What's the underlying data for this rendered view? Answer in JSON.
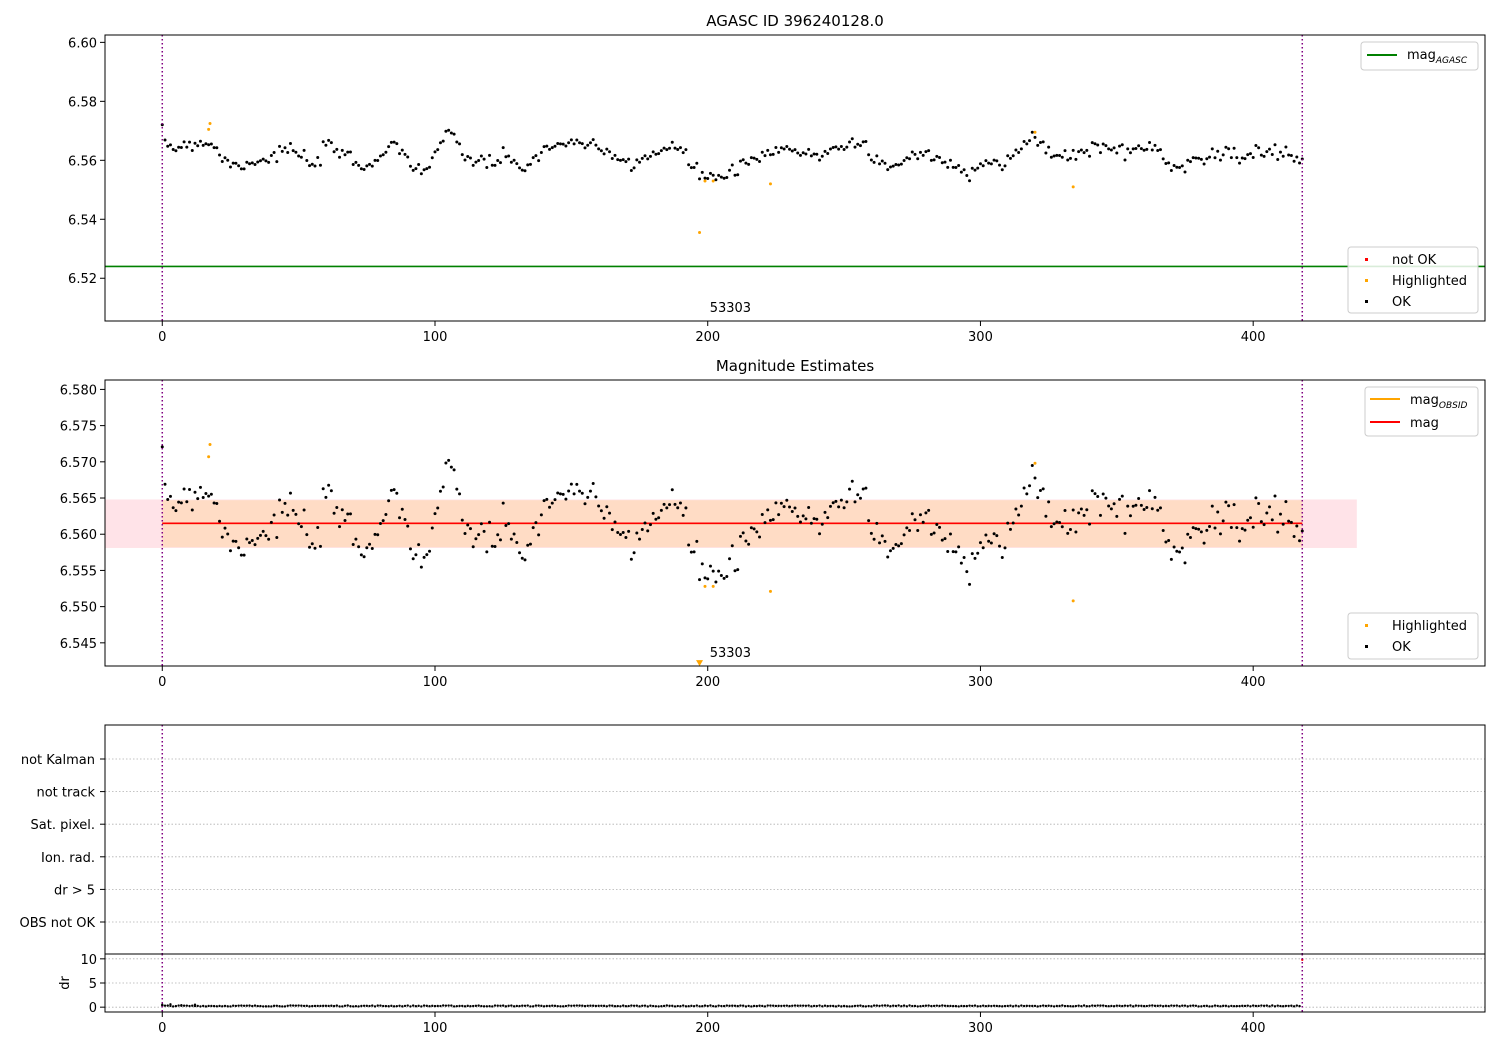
{
  "figure": {
    "title": "AGASC ID 396240128.0"
  },
  "colors": {
    "ok": "#000000",
    "highlighted": "#ffa500",
    "not_ok": "#ff0000",
    "mag_agasc_line": "#008000",
    "mag_obsid_line": "#ffa500",
    "mag_line": "#ff0000",
    "band_outer": "#ffc0cb",
    "band_inner": "#ffdab9",
    "obs_boundary": "#800080",
    "grid": "#b0b0b0"
  },
  "chart_data": [
    {
      "id": "agasc_panel",
      "type": "scatter",
      "title": "AGASC ID 396240128.0",
      "xlim": [
        -21,
        485
      ],
      "ylim": [
        6.5055,
        6.6025
      ],
      "xticks": [
        0,
        100,
        200,
        300,
        400
      ],
      "yticks": [
        6.52,
        6.54,
        6.56,
        6.58,
        6.6
      ],
      "ytick_labels": [
        "6.52",
        "6.54",
        "6.56",
        "6.58",
        "6.60"
      ],
      "obs_boundaries": [
        0,
        418
      ],
      "obs_label": "53303",
      "mag_agasc": 6.524,
      "legend_lines": [
        {
          "label": "mag",
          "sub": "AGASC",
          "color": "#008000"
        }
      ],
      "legend_points": [
        {
          "label": "not OK",
          "color": "#ff0000"
        },
        {
          "label": "Highlighted",
          "color": "#ffa500"
        },
        {
          "label": "OK",
          "color": "#000000"
        }
      ],
      "highlighted": [
        [
          17,
          6.5705
        ],
        [
          17.5,
          6.5725
        ],
        [
          197,
          6.5355
        ],
        [
          199,
          6.553
        ],
        [
          202,
          6.553
        ],
        [
          223,
          6.552
        ],
        [
          320,
          6.5695
        ],
        [
          334,
          6.551
        ]
      ]
    },
    {
      "id": "mag_panel",
      "type": "scatter",
      "title": "Magnitude Estimates",
      "xlim": [
        -21,
        485
      ],
      "ylim": [
        6.5418,
        6.5813
      ],
      "xticks": [
        0,
        100,
        200,
        300,
        400
      ],
      "yticks": [
        6.545,
        6.55,
        6.555,
        6.56,
        6.565,
        6.57,
        6.575,
        6.58
      ],
      "ytick_labels": [
        "6.545",
        "6.550",
        "6.555",
        "6.560",
        "6.565",
        "6.570",
        "6.575",
        "6.580"
      ],
      "obs_boundaries": [
        0,
        418
      ],
      "obs_label": "53303",
      "mag": 6.5615,
      "mag_obsid": 6.5615,
      "band_outer": [
        6.5581,
        6.5648
      ],
      "band_inner": [
        6.5582,
        6.5647
      ],
      "band_x": [
        -21,
        438
      ],
      "legend_lines": [
        {
          "label": "mag",
          "sub": "OBSID",
          "color": "#ffa500"
        },
        {
          "label": "mag",
          "sub": "",
          "color": "#ff0000"
        }
      ],
      "legend_points": [
        {
          "label": "Highlighted",
          "color": "#ffa500"
        },
        {
          "label": "OK",
          "color": "#000000"
        }
      ],
      "highlighted": [
        [
          17,
          6.5707
        ],
        [
          17.5,
          6.5724
        ],
        [
          199,
          6.5528
        ],
        [
          202,
          6.5528
        ],
        [
          223,
          6.5521
        ],
        [
          320,
          6.5698
        ],
        [
          334,
          6.5508
        ]
      ],
      "offscale_marker": {
        "x": 197,
        "y": 6.5422
      }
    },
    {
      "id": "flags_panel",
      "type": "scatter",
      "xlim": [
        -21,
        485
      ],
      "categories": [
        "not Kalman",
        "not track",
        "Sat. pixel.",
        "Ion. rad.",
        "dr > 5",
        "OBS not OK"
      ],
      "obs_boundaries": [
        0,
        418
      ]
    },
    {
      "id": "dr_panel",
      "type": "line",
      "ylabel": "dr",
      "xlim": [
        -21,
        485
      ],
      "ylim": [
        -1,
        11
      ],
      "xticks": [
        0,
        100,
        200,
        300,
        400
      ],
      "yticks": [
        0,
        5,
        10
      ],
      "ytick_labels": [
        "0",
        "5",
        "10"
      ],
      "obs_boundaries": [
        0,
        418
      ],
      "dr_typical": 0.25,
      "dr_points": [
        [
          0,
          0.5
        ],
        [
          3,
          0.6
        ],
        [
          7,
          0.4
        ],
        [
          12,
          0.5
        ],
        [
          418,
          9.8
        ]
      ]
    }
  ],
  "ok_series_keyframes": {
    "x": [
      0,
      5,
      10,
      18,
      22,
      26,
      30,
      40,
      46,
      56,
      60,
      66,
      73,
      80,
      85,
      92,
      97,
      104,
      110,
      115,
      125,
      133,
      140,
      150,
      160,
      172,
      182,
      190,
      196,
      202,
      210,
      215,
      222,
      230,
      238,
      248,
      256,
      262,
      268,
      276,
      282,
      290,
      296,
      302,
      308,
      314,
      320,
      328,
      336,
      342,
      352,
      362,
      370,
      378,
      388,
      396,
      408,
      418
    ],
    "y": [
      6.567,
      6.564,
      6.566,
      6.566,
      6.561,
      6.558,
      6.559,
      6.561,
      6.564,
      6.558,
      6.564,
      6.563,
      6.557,
      6.562,
      6.566,
      6.558,
      6.557,
      6.569,
      6.563,
      6.559,
      6.56,
      6.558,
      6.563,
      6.567,
      6.563,
      6.559,
      6.563,
      6.564,
      6.556,
      6.554,
      6.556,
      6.559,
      6.562,
      6.564,
      6.561,
      6.565,
      6.566,
      6.56,
      6.557,
      6.563,
      6.561,
      6.558,
      6.556,
      6.561,
      6.558,
      6.563,
      6.568,
      6.561,
      6.562,
      6.565,
      6.563,
      6.565,
      6.558,
      6.56,
      6.563,
      6.561,
      6.563,
      6.561
    ],
    "noise": 0.0013
  }
}
